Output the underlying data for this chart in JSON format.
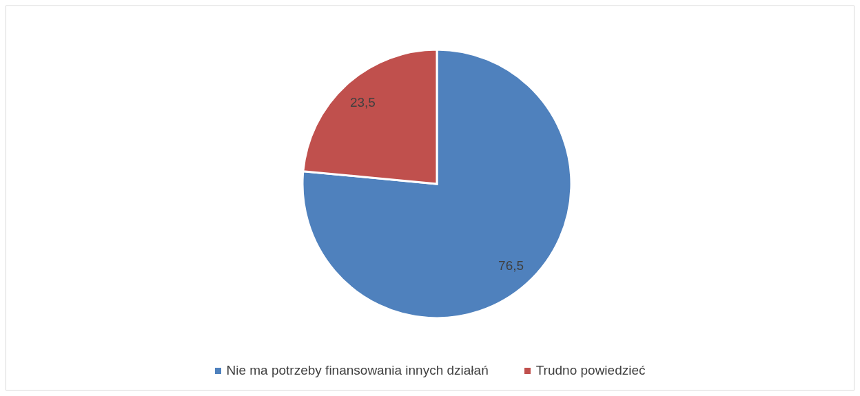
{
  "chart_data": {
    "type": "pie",
    "categories": [
      "Nie ma potrzeby finansowania innych działań",
      "Trudno powiedzieć"
    ],
    "values": [
      76.5,
      23.5
    ],
    "value_labels": [
      "76,5",
      "23,5"
    ],
    "colors": [
      "#4f81bd",
      "#c0504d"
    ],
    "legend": "bottom"
  }
}
